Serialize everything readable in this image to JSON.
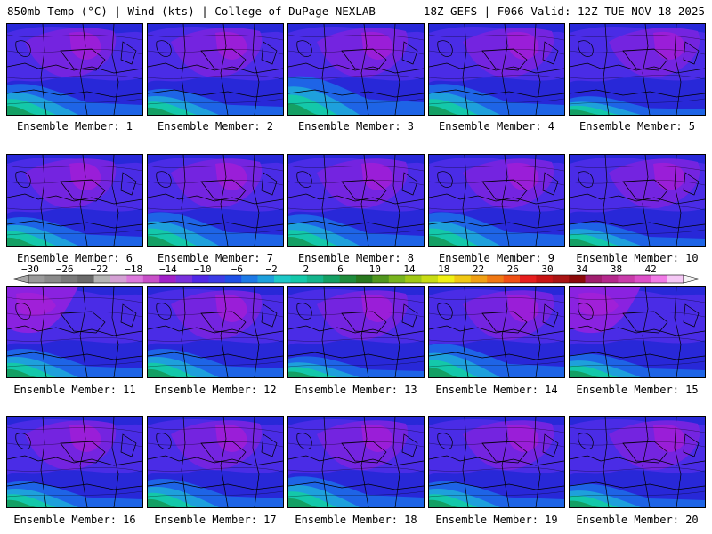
{
  "header": {
    "left": "850mb Temp (°C) | Wind (kts) | College of DuPage NEXLAB",
    "right": "18Z GEFS | F066 Valid: 12Z TUE NOV 18 2025"
  },
  "members": [
    {
      "caption": "Ensemble Member: 1",
      "pattern": "warm-south",
      "intensity": 0.55
    },
    {
      "caption": "Ensemble Member: 2",
      "pattern": "warm-south",
      "intensity": 0.45
    },
    {
      "caption": "Ensemble Member: 3",
      "pattern": "warm-south",
      "intensity": 0.7
    },
    {
      "caption": "Ensemble Member: 4",
      "pattern": "warm-south",
      "intensity": 0.55
    },
    {
      "caption": "Ensemble Member: 5",
      "pattern": "blue",
      "intensity": 0.3
    },
    {
      "caption": "Ensemble Member: 6",
      "pattern": "warm-south",
      "intensity": 0.5
    },
    {
      "caption": "Ensemble Member: 7",
      "pattern": "warm-south",
      "intensity": 0.6
    },
    {
      "caption": "Ensemble Member: 8",
      "pattern": "warm-south",
      "intensity": 0.55
    },
    {
      "caption": "Ensemble Member: 9",
      "pattern": "warm-south",
      "intensity": 0.6
    },
    {
      "caption": "Ensemble Member: 10",
      "pattern": "blue",
      "intensity": 0.4
    },
    {
      "caption": "Ensemble Member: 11",
      "pattern": "purple-west",
      "intensity": 0.5
    },
    {
      "caption": "Ensemble Member: 12",
      "pattern": "warm-south",
      "intensity": 0.5
    },
    {
      "caption": "Ensemble Member: 13",
      "pattern": "blue",
      "intensity": 0.35
    },
    {
      "caption": "Ensemble Member: 14",
      "pattern": "warm-south",
      "intensity": 0.6
    },
    {
      "caption": "Ensemble Member: 15",
      "pattern": "purple-west",
      "intensity": 0.4
    },
    {
      "caption": "Ensemble Member: 16",
      "pattern": "blue",
      "intensity": 0.45
    },
    {
      "caption": "Ensemble Member: 17",
      "pattern": "warm-south",
      "intensity": 0.5
    },
    {
      "caption": "Ensemble Member: 18",
      "pattern": "warm-south",
      "intensity": 0.55
    },
    {
      "caption": "Ensemble Member: 19",
      "pattern": "warm-south",
      "intensity": 0.45
    },
    {
      "caption": "Ensemble Member: 20",
      "pattern": "blue",
      "intensity": 0.4
    }
  ],
  "colorbar": {
    "labels": [
      "−30",
      "−26",
      "−22",
      "−18",
      "−14",
      "−10",
      "−6",
      "−2",
      "2",
      "6",
      "10",
      "14",
      "18",
      "22",
      "26",
      "30",
      "34",
      "38",
      "42"
    ],
    "colors": [
      "#9a9a9a",
      "#8a8a8a",
      "#7a7a7a",
      "#6a6a6a",
      "#b4b4b4",
      "#d4a0d4",
      "#dc78dc",
      "#c850c8",
      "#a020c8",
      "#7830dc",
      "#5028e6",
      "#3c3ce6",
      "#1e50e6",
      "#1e7ae6",
      "#1ea0dc",
      "#1ec8c8",
      "#14c8aa",
      "#14b48c",
      "#14a064",
      "#1e8c3c",
      "#28781e",
      "#50961e",
      "#78b41e",
      "#a0c814",
      "#c8dc14",
      "#f0f014",
      "#f0c814",
      "#f0a014",
      "#f07814",
      "#f05014",
      "#e61e1e",
      "#c81414",
      "#aa1414",
      "#8c0a0a",
      "#a01e6e",
      "#b4288c",
      "#c83caa",
      "#dc50c8",
      "#f07ae6",
      "#f5c8f5"
    ]
  }
}
